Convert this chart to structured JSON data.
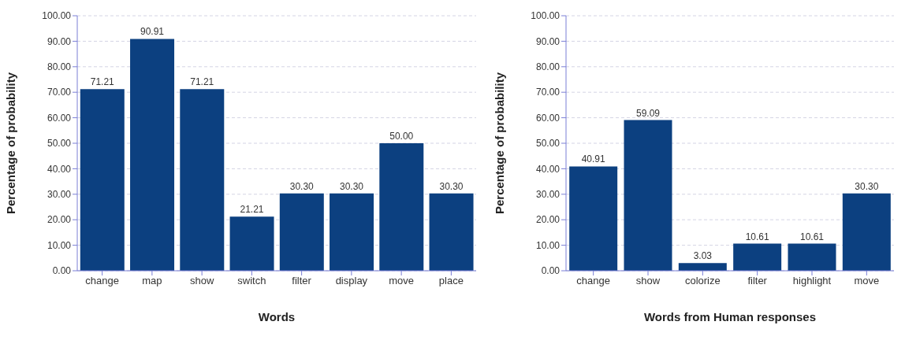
{
  "chart_data": [
    {
      "type": "bar",
      "xlabel": "Words",
      "ylabel": "Percentage of probability",
      "categories": [
        "change",
        "map",
        "show",
        "switch",
        "filter",
        "display",
        "move",
        "place"
      ],
      "values": [
        71.21,
        90.91,
        71.21,
        21.21,
        30.3,
        30.3,
        50.0,
        30.3
      ],
      "value_labels": [
        "71.21",
        "90.91",
        "71.21",
        "21.21",
        "30.30",
        "30.30",
        "50.00",
        "30.30"
      ],
      "color": "#0c4080",
      "ylim": [
        0,
        100
      ],
      "yticks": [
        {
          "value": 0,
          "label": "0.00"
        },
        {
          "value": 10,
          "label": "10.00"
        },
        {
          "value": 20,
          "label": "20.00"
        },
        {
          "value": 30,
          "label": "30.00"
        },
        {
          "value": 40,
          "label": "40.00"
        },
        {
          "value": 50,
          "label": "50.00"
        },
        {
          "value": 60,
          "label": "60.00"
        },
        {
          "value": 70,
          "label": "70.00"
        },
        {
          "value": 80,
          "label": "80.00"
        },
        {
          "value": 90,
          "label": "90.00"
        },
        {
          "value": 100,
          "label": "100.00"
        }
      ],
      "grid": "y"
    },
    {
      "type": "bar",
      "xlabel": "Words from Human responses",
      "ylabel": "Percentage of probability",
      "categories": [
        "change",
        "show",
        "colorize",
        "filter",
        "highlight",
        "move"
      ],
      "values": [
        40.91,
        59.09,
        3.03,
        10.61,
        10.61,
        30.3
      ],
      "value_labels": [
        "40.91",
        "59.09",
        "3.03",
        "10.61",
        "10.61",
        "30.30"
      ],
      "color": "#0c4080",
      "ylim": [
        0,
        100
      ],
      "yticks": [
        {
          "value": 0,
          "label": "0.00"
        },
        {
          "value": 10,
          "label": "10.00"
        },
        {
          "value": 20,
          "label": "20.00"
        },
        {
          "value": 30,
          "label": "30.00"
        },
        {
          "value": 40,
          "label": "40.00"
        },
        {
          "value": 50,
          "label": "50.00"
        },
        {
          "value": 60,
          "label": "60.00"
        },
        {
          "value": 70,
          "label": "70.00"
        },
        {
          "value": 80,
          "label": "80.00"
        },
        {
          "value": 90,
          "label": "90.00"
        },
        {
          "value": 100,
          "label": "100.00"
        }
      ],
      "grid": "y"
    }
  ]
}
